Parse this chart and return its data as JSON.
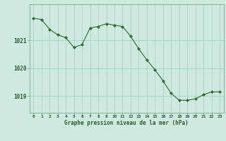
{
  "x": [
    0,
    1,
    2,
    3,
    4,
    5,
    6,
    7,
    8,
    9,
    10,
    11,
    12,
    13,
    14,
    15,
    16,
    17,
    18,
    19,
    20,
    21,
    22,
    23
  ],
  "y": [
    1021.8,
    1021.75,
    1021.4,
    1021.2,
    1021.1,
    1020.75,
    1020.85,
    1021.45,
    1021.5,
    1021.6,
    1021.55,
    1021.5,
    1021.15,
    1020.7,
    1020.3,
    1019.95,
    1019.55,
    1019.1,
    1018.85,
    1018.85,
    1018.9,
    1019.05,
    1019.15,
    1019.15
  ],
  "line_color": "#2d6a2d",
  "marker_color": "#2d6a2d",
  "bg_color": "#ceeae0",
  "grid_color": "#9ecfbc",
  "tick_label_color": "#2d5a2d",
  "xlabel": "Graphe pression niveau de la mer (hPa)",
  "yticks": [
    1019,
    1020,
    1021
  ],
  "ylim": [
    1018.4,
    1022.3
  ],
  "xlim": [
    -0.5,
    23.5
  ]
}
